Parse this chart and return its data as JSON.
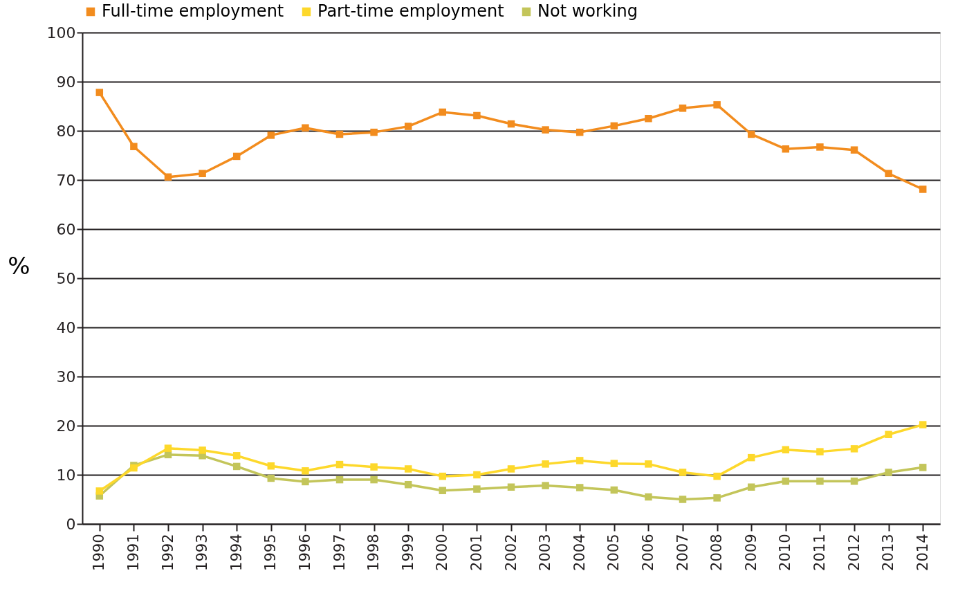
{
  "chart_data": {
    "type": "line",
    "ylabel": "%",
    "categories": [
      "1990",
      "1991",
      "1992",
      "1993",
      "1994",
      "1995",
      "1996",
      "1997",
      "1998",
      "1999",
      "2000",
      "2001",
      "2002",
      "2003",
      "2004",
      "2005",
      "2006",
      "2007",
      "2008",
      "2009",
      "2010",
      "2011",
      "2012",
      "2013",
      "2014"
    ],
    "series": [
      {
        "name": "Full-time employment",
        "color": "#f28c1e",
        "values": [
          87.8,
          76.8,
          70.6,
          71.3,
          74.8,
          79.1,
          80.6,
          79.3,
          79.7,
          80.9,
          83.8,
          83.1,
          81.4,
          80.2,
          79.7,
          81.0,
          82.5,
          84.6,
          85.3,
          79.3,
          76.3,
          76.7,
          76.1,
          71.3,
          68.1
        ]
      },
      {
        "name": "Part-time employment",
        "color": "#fdd82b",
        "values": [
          6.7,
          11.4,
          15.4,
          15.0,
          13.9,
          11.8,
          10.8,
          12.1,
          11.6,
          11.2,
          9.7,
          10.0,
          11.2,
          12.2,
          12.9,
          12.3,
          12.2,
          10.5,
          9.7,
          13.5,
          15.1,
          14.7,
          15.3,
          18.2,
          20.2
        ]
      },
      {
        "name": "Not working",
        "color": "#c3c55a",
        "values": [
          5.7,
          11.9,
          14.1,
          13.9,
          11.7,
          9.3,
          8.6,
          9.0,
          9.0,
          8.0,
          6.8,
          7.1,
          7.5,
          7.8,
          7.4,
          6.9,
          5.5,
          5.0,
          5.3,
          7.5,
          8.7,
          8.7,
          8.7,
          10.5,
          11.5
        ]
      }
    ],
    "ylim": [
      0,
      100
    ],
    "yticks": [
      0,
      10,
      20,
      30,
      40,
      50,
      60,
      70,
      80,
      90,
      100
    ],
    "grid": "y",
    "legend": "top",
    "marker": "square",
    "line_style": "solid"
  }
}
